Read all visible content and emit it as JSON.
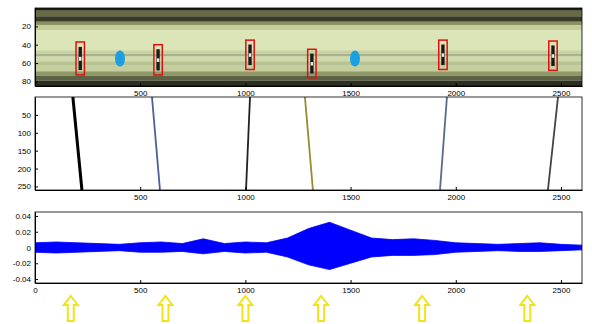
{
  "chart_data": [
    {
      "type": "image",
      "xlim": [
        0,
        2600
      ],
      "ylim": [
        0,
        85
      ],
      "xticks": [
        500,
        1000,
        1500,
        2000,
        2500
      ],
      "yticks": [
        20,
        40,
        60,
        80
      ],
      "boxes": [
        {
          "x0": 195,
          "x1": 235,
          "y0": 37,
          "y1": 73
        },
        {
          "x0": 565,
          "x1": 605,
          "y0": 40,
          "y1": 73
        },
        {
          "x0": 1002,
          "x1": 1042,
          "y0": 35,
          "y1": 67
        },
        {
          "x0": 1296,
          "x1": 1336,
          "y0": 45,
          "y1": 76
        },
        {
          "x0": 1919,
          "x1": 1959,
          "y0": 35,
          "y1": 67
        },
        {
          "x0": 2442,
          "x1": 2482,
          "y0": 36,
          "y1": 68
        }
      ],
      "ellipses": [
        {
          "x": 404,
          "y": 55
        },
        {
          "x": 1521,
          "y": 55
        }
      ]
    },
    {
      "type": "line",
      "xlim": [
        0,
        2600
      ],
      "ylim": [
        0,
        260
      ],
      "xticks": [
        500,
        1000,
        1500,
        2000,
        2500
      ],
      "yticks": [
        50,
        100,
        150,
        200,
        250
      ],
      "series": [
        {
          "color": "#000000",
          "x": [
            180,
            223
          ],
          "values": [
            0,
            260
          ]
        },
        {
          "color": "#4a5fa0",
          "x": [
            556,
            594
          ],
          "values": [
            0,
            260
          ]
        },
        {
          "color": "#222222",
          "x": [
            1022,
            1003
          ],
          "values": [
            0,
            260
          ]
        },
        {
          "color": "#9a8a30",
          "x": [
            1283,
            1321
          ],
          "values": [
            0,
            260
          ]
        },
        {
          "color": "#5a6a8a",
          "x": [
            1958,
            1925
          ],
          "values": [
            0,
            260
          ]
        },
        {
          "color": "#444444",
          "x": [
            2486,
            2438
          ],
          "values": [
            0,
            260
          ]
        }
      ]
    },
    {
      "type": "area",
      "xlim": [
        0,
        2600
      ],
      "ylim": [
        -0.045,
        0.045
      ],
      "xticks": [
        0,
        500,
        1000,
        1500,
        2000,
        2500
      ],
      "yticks": [
        -0.04,
        -0.02,
        0,
        0.02,
        0.04
      ],
      "color": "#0000ff",
      "x": [
        0,
        100,
        200,
        300,
        400,
        500,
        600,
        700,
        800,
        900,
        1000,
        1100,
        1200,
        1300,
        1400,
        1500,
        1600,
        1700,
        1800,
        1900,
        2000,
        2100,
        2200,
        2300,
        2400,
        2500,
        2600
      ],
      "upper": [
        0.006,
        0.007,
        0.006,
        0.005,
        0.004,
        0.006,
        0.007,
        0.005,
        0.011,
        0.005,
        0.007,
        0.006,
        0.012,
        0.024,
        0.032,
        0.022,
        0.012,
        0.01,
        0.011,
        0.009,
        0.006,
        0.005,
        0.004,
        0.005,
        0.006,
        0.004,
        0.003
      ],
      "lower": [
        -0.006,
        -0.007,
        -0.006,
        -0.005,
        -0.004,
        -0.006,
        -0.006,
        -0.005,
        -0.008,
        -0.005,
        -0.007,
        -0.006,
        -0.012,
        -0.022,
        -0.028,
        -0.02,
        -0.012,
        -0.01,
        -0.01,
        -0.009,
        -0.006,
        -0.005,
        -0.004,
        -0.005,
        -0.005,
        -0.004,
        -0.003
      ],
      "arrows_x": [
        170,
        620,
        1000,
        1360,
        1840,
        2340
      ]
    }
  ]
}
